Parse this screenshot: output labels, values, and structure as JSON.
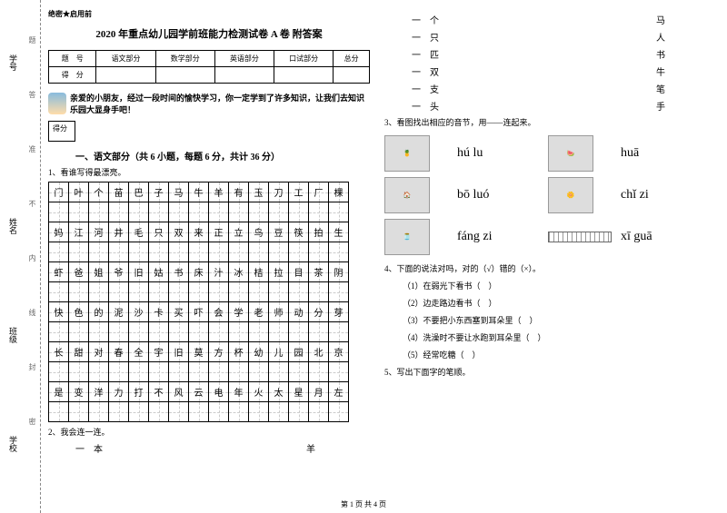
{
  "secret": "绝密★启用前",
  "title": "2020 年重点幼儿园学前班能力检测试卷 A 卷 附答案",
  "scoreTable": {
    "headers": [
      "题　号",
      "语文部分",
      "数学部分",
      "英语部分",
      "口试部分",
      "总分"
    ],
    "row2": "得　分"
  },
  "intro": "亲爱的小朋友，经过一段时间的愉快学习，你一定学到了许多知识，让我们去知识乐园大显身手吧！",
  "scoreBoxLabel": "得分",
  "section1": "一、语文部分（共 6 小题，每题 6 分，共计 36 分）",
  "q1": "1、看谁写得最漂亮。",
  "grid": [
    [
      "门",
      "叶",
      "个",
      "苗",
      "巴",
      "子",
      "马",
      "牛",
      "羊",
      "有",
      "玉",
      "刀",
      "工",
      "厂",
      "棵"
    ],
    [
      "",
      "",
      "",
      "",
      "",
      "",
      "",
      "",
      "",
      "",
      "",
      "",
      "",
      "",
      ""
    ],
    [
      "妈",
      "江",
      "河",
      "井",
      "毛",
      "只",
      "双",
      "来",
      "正",
      "立",
      "鸟",
      "豆",
      "筷",
      "拍",
      "生"
    ],
    [
      "",
      "",
      "",
      "",
      "",
      "",
      "",
      "",
      "",
      "",
      "",
      "",
      "",
      "",
      ""
    ],
    [
      "虾",
      "爸",
      "姐",
      "爷",
      "旧",
      "姑",
      "书",
      "床",
      "汁",
      "冰",
      "桔",
      "拉",
      "目",
      "茶",
      "阴"
    ],
    [
      "",
      "",
      "",
      "",
      "",
      "",
      "",
      "",
      "",
      "",
      "",
      "",
      "",
      "",
      ""
    ],
    [
      "快",
      "色",
      "的",
      "泥",
      "沙",
      "卡",
      "买",
      "吓",
      "会",
      "学",
      "老",
      "师",
      "动",
      "分",
      "芽"
    ],
    [
      "",
      "",
      "",
      "",
      "",
      "",
      "",
      "",
      "",
      "",
      "",
      "",
      "",
      "",
      ""
    ],
    [
      "长",
      "甜",
      "对",
      "春",
      "全",
      "宇",
      "旧",
      "莫",
      "方",
      "杯",
      "幼",
      "儿",
      "园",
      "北",
      "京"
    ],
    [
      "",
      "",
      "",
      "",
      "",
      "",
      "",
      "",
      "",
      "",
      "",
      "",
      "",
      "",
      ""
    ],
    [
      "是",
      "变",
      "洋",
      "力",
      "打",
      "不",
      "风",
      "云",
      "电",
      "年",
      "火",
      "太",
      "星",
      "月",
      "左"
    ],
    [
      "",
      "",
      "",
      "",
      "",
      "",
      "",
      "",
      "",
      "",
      "",
      "",
      "",
      "",
      ""
    ]
  ],
  "q2": "2、我会连一连。",
  "matchLeft": [
    "一　本",
    "一　个",
    "一　只",
    "一　匹",
    "一　双",
    "一　支",
    "一　头"
  ],
  "matchRight": [
    "羊",
    "马",
    "人",
    "书",
    "牛",
    "笔",
    "手"
  ],
  "q3": "3、看图找出相应的音节，用——连起来。",
  "pinyin": {
    "items": [
      {
        "img": "pineapple",
        "text": "hú lu",
        "img2": "watermelon",
        "text2": "huā"
      },
      {
        "img": "house",
        "text": "bō luó",
        "img2": "flower",
        "text2": "chǐ zi"
      },
      {
        "img": "gourd",
        "text": "fáng zi",
        "img2": "ruler",
        "text2": "xī guā"
      }
    ]
  },
  "q4": "4、下面的说法对吗，对的（√）错的（×）。",
  "tfItems": [
    "（1）在弱光下看书（　）",
    "（2）边走路边看书（　）",
    "（3）不要把小东西塞到耳朵里（　）",
    "（4）洗澡时不要让水跑到耳朵里（　）",
    "（5）经常吃糖（　）"
  ],
  "q5": "5、写出下面字的笔顺。",
  "footer": "第 1 页 共 4 页",
  "bindingLabels": {
    "school": "学校",
    "class": "班级",
    "name": "姓名",
    "id": "学号"
  },
  "bindingMarks": [
    "密",
    "封",
    "线",
    "内",
    "不",
    "准",
    "答",
    "题"
  ]
}
